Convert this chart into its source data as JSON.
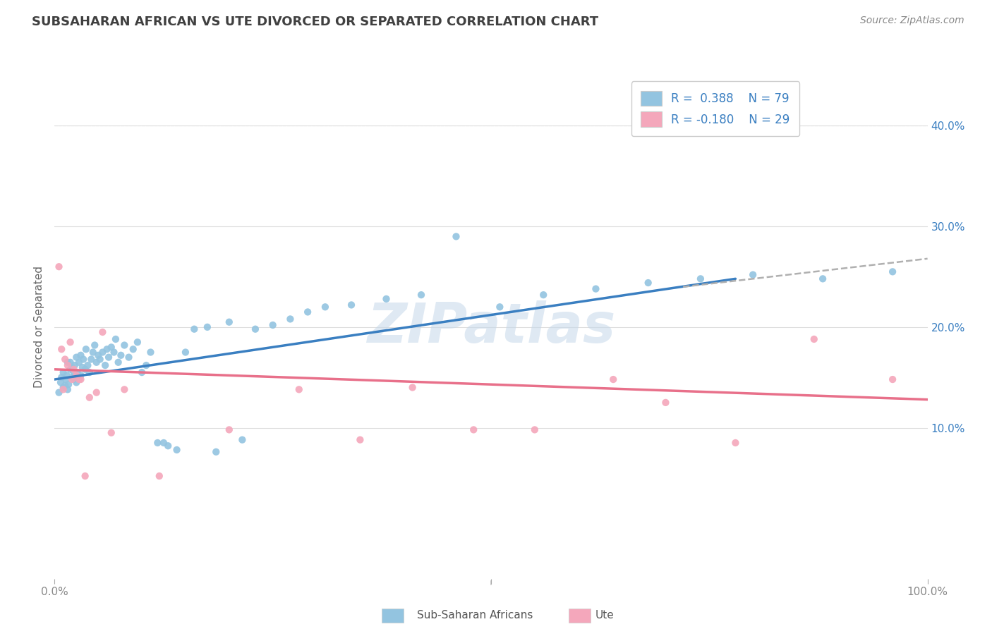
{
  "title": "SUBSAHARAN AFRICAN VS UTE DIVORCED OR SEPARATED CORRELATION CHART",
  "source": "Source: ZipAtlas.com",
  "ylabel": "Divorced or Separated",
  "watermark": "ZIPatlas",
  "legend_blue_r": "R =  0.388",
  "legend_blue_n": "N = 79",
  "legend_pink_r": "R = -0.180",
  "legend_pink_n": "N = 29",
  "blue_color": "#93c4e0",
  "pink_color": "#f4a7bb",
  "blue_line_color": "#3a7fc1",
  "pink_line_color": "#e8708a",
  "dashed_line_color": "#b0b0b0",
  "background_color": "#ffffff",
  "grid_color": "#dddddd",
  "title_color": "#404040",
  "right_axis_color": "#3a7fc1",
  "source_color": "#888888",
  "tick_color": "#888888",
  "ylabel_color": "#666666",
  "xlim": [
    0.0,
    1.0
  ],
  "ylim": [
    -0.05,
    0.45
  ],
  "yticks": [
    0.1,
    0.2,
    0.3,
    0.4
  ],
  "ytick_labels": [
    "10.0%",
    "20.0%",
    "30.0%",
    "40.0%"
  ],
  "blue_scatter_x": [
    0.005,
    0.007,
    0.008,
    0.01,
    0.01,
    0.012,
    0.013,
    0.014,
    0.015,
    0.015,
    0.016,
    0.018,
    0.018,
    0.02,
    0.02,
    0.022,
    0.022,
    0.023,
    0.025,
    0.025,
    0.026,
    0.028,
    0.03,
    0.03,
    0.032,
    0.033,
    0.035,
    0.036,
    0.038,
    0.04,
    0.042,
    0.044,
    0.046,
    0.048,
    0.05,
    0.052,
    0.055,
    0.058,
    0.06,
    0.062,
    0.065,
    0.068,
    0.07,
    0.073,
    0.076,
    0.08,
    0.085,
    0.09,
    0.095,
    0.1,
    0.105,
    0.11,
    0.118,
    0.125,
    0.13,
    0.14,
    0.15,
    0.16,
    0.175,
    0.185,
    0.2,
    0.215,
    0.23,
    0.25,
    0.27,
    0.29,
    0.31,
    0.34,
    0.38,
    0.42,
    0.46,
    0.51,
    0.56,
    0.62,
    0.68,
    0.74,
    0.8,
    0.88,
    0.96
  ],
  "blue_scatter_y": [
    0.135,
    0.145,
    0.15,
    0.14,
    0.155,
    0.142,
    0.148,
    0.152,
    0.138,
    0.165,
    0.143,
    0.158,
    0.165,
    0.15,
    0.16,
    0.148,
    0.155,
    0.162,
    0.145,
    0.17,
    0.155,
    0.165,
    0.152,
    0.172,
    0.16,
    0.168,
    0.158,
    0.178,
    0.162,
    0.155,
    0.168,
    0.175,
    0.182,
    0.165,
    0.172,
    0.168,
    0.175,
    0.162,
    0.178,
    0.17,
    0.18,
    0.175,
    0.188,
    0.165,
    0.172,
    0.182,
    0.17,
    0.178,
    0.185,
    0.155,
    0.162,
    0.175,
    0.085,
    0.085,
    0.082,
    0.078,
    0.175,
    0.198,
    0.2,
    0.076,
    0.205,
    0.088,
    0.198,
    0.202,
    0.208,
    0.215,
    0.22,
    0.222,
    0.228,
    0.232,
    0.29,
    0.22,
    0.232,
    0.238,
    0.244,
    0.248,
    0.252,
    0.248,
    0.255
  ],
  "pink_scatter_x": [
    0.005,
    0.008,
    0.01,
    0.012,
    0.015,
    0.018,
    0.02,
    0.022,
    0.025,
    0.028,
    0.03,
    0.035,
    0.04,
    0.048,
    0.055,
    0.065,
    0.08,
    0.12,
    0.2,
    0.28,
    0.35,
    0.41,
    0.48,
    0.55,
    0.64,
    0.7,
    0.78,
    0.87,
    0.96
  ],
  "pink_scatter_y": [
    0.26,
    0.178,
    0.138,
    0.168,
    0.162,
    0.185,
    0.148,
    0.158,
    0.152,
    0.148,
    0.148,
    0.052,
    0.13,
    0.135,
    0.195,
    0.095,
    0.138,
    0.052,
    0.098,
    0.138,
    0.088,
    0.14,
    0.098,
    0.098,
    0.148,
    0.125,
    0.085,
    0.188,
    0.148
  ],
  "blue_line_x": [
    0.0,
    0.78
  ],
  "blue_line_y_start": 0.148,
  "blue_line_y_end": 0.248,
  "dashed_line_x": [
    0.72,
    1.0
  ],
  "dashed_line_y_start": 0.24,
  "dashed_line_y_end": 0.268,
  "pink_line_x": [
    0.0,
    1.0
  ],
  "pink_line_y_start": 0.158,
  "pink_line_y_end": 0.128
}
